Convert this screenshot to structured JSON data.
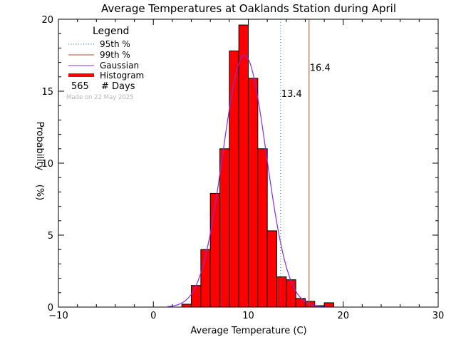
{
  "chart_data": {
    "type": "bar",
    "title": "Average Temperatures at Oaklands Station during April",
    "xlabel": "Average Temperature (C)",
    "ylabel": "Probability",
    "ylabel_unit": "(%)",
    "xlim": [
      -10,
      30
    ],
    "ylim": [
      0,
      20
    ],
    "x_ticks": [
      -10,
      0,
      10,
      20,
      30
    ],
    "y_ticks": [
      0,
      5,
      10,
      15,
      20
    ],
    "bin_width": 1,
    "bins": [
      {
        "x0": 3,
        "value": 0.2
      },
      {
        "x0": 4,
        "value": 1.5
      },
      {
        "x0": 5,
        "value": 4.0
      },
      {
        "x0": 6,
        "value": 7.9
      },
      {
        "x0": 7,
        "value": 11.0
      },
      {
        "x0": 8,
        "value": 17.8
      },
      {
        "x0": 9,
        "value": 19.6
      },
      {
        "x0": 10,
        "value": 15.9
      },
      {
        "x0": 11,
        "value": 11.0
      },
      {
        "x0": 12,
        "value": 5.3
      },
      {
        "x0": 13,
        "value": 2.1
      },
      {
        "x0": 14,
        "value": 1.9
      },
      {
        "x0": 15,
        "value": 0.6
      },
      {
        "x0": 16,
        "value": 0.4
      },
      {
        "x0": 17,
        "value": 0.1
      },
      {
        "x0": 18,
        "value": 0.3
      }
    ],
    "gaussian": {
      "mean": 9.6,
      "sigma": 2.3,
      "peak": 17.5
    },
    "percentile_95": {
      "value": 13.4,
      "label": "13.4",
      "color": "#1f77c8"
    },
    "percentile_99": {
      "value": 16.4,
      "label": "16.4",
      "color": "#a0522d"
    },
    "legend": {
      "title": "Legend",
      "placement": "top-left",
      "entries": [
        {
          "label": "95th %",
          "style": "dotted",
          "color": "#1f77c8"
        },
        {
          "label": "99th %",
          "style": "solid",
          "color": "#a0522d"
        },
        {
          "label": "Gaussian",
          "style": "solid",
          "color": "#8a2be2"
        },
        {
          "label": "Histogram",
          "style": "thick",
          "color": "#ff0000"
        }
      ],
      "days_count": "565",
      "days_label": "# Days",
      "made_on": "Made on 22 May 2025"
    },
    "colors": {
      "histogram": "#ff0000",
      "gaussian": "#8a2be2",
      "axes": "#000000"
    }
  }
}
